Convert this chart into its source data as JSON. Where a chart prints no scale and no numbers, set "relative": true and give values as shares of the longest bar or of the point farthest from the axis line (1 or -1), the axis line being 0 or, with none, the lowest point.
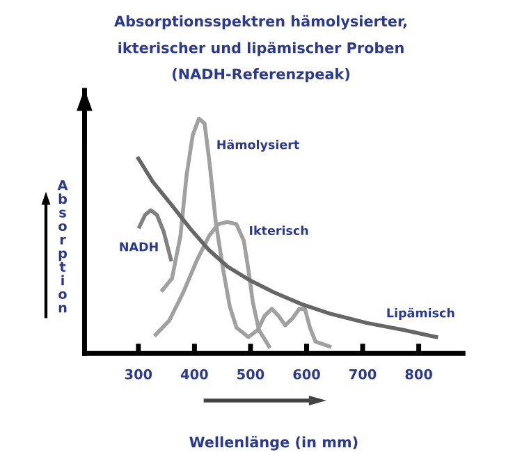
{
  "chart_data": {
    "type": "line",
    "title": "Absorptionsspektren hämolysierter,\nikterischer und lipämischer Proben\n(NADH-Referenzpeak)",
    "xlabel": "Wellenlänge (in mm)",
    "ylabel": "Absorption",
    "relative": true,
    "xlim": [
      204,
      879
    ],
    "xticks": [
      300,
      400,
      500,
      600,
      700,
      800
    ],
    "grid": false,
    "legend": false,
    "marker": "none",
    "line_style": "solid",
    "series": [
      {
        "name": "NADH",
        "color": "#808080",
        "x": [
          302,
          312,
          322,
          333,
          345,
          358
        ],
        "values": [
          0.54,
          0.59,
          0.61,
          0.59,
          0.52,
          0.4
        ]
      },
      {
        "name": "Hämolysiert",
        "color": "#a0a0a0",
        "x": [
          343,
          360,
          375,
          386,
          397,
          408,
          418,
          427,
          438,
          451,
          463,
          475,
          496,
          513,
          525,
          538,
          550,
          562,
          575,
          587,
          597,
          606,
          616,
          641
        ],
        "values": [
          0.27,
          0.32,
          0.5,
          0.76,
          0.93,
          1.0,
          0.98,
          0.81,
          0.56,
          0.36,
          0.2,
          0.11,
          0.07,
          0.1,
          0.16,
          0.19,
          0.16,
          0.12,
          0.15,
          0.19,
          0.19,
          0.11,
          0.05,
          0.03
        ]
      },
      {
        "name": "Ikterisch",
        "color": "#a0a0a0",
        "x": [
          331,
          355,
          380,
          405,
          426,
          442,
          459,
          475,
          488,
          496,
          504,
          515,
          533
        ],
        "values": [
          0.08,
          0.14,
          0.26,
          0.4,
          0.5,
          0.55,
          0.56,
          0.55,
          0.48,
          0.36,
          0.22,
          0.1,
          0.03
        ]
      },
      {
        "name": "Lipämisch",
        "color": "#666666",
        "x": [
          300,
          326,
          360,
          393,
          426,
          459,
          500,
          542,
          591,
          641,
          707,
          773,
          831
        ],
        "values": [
          0.83,
          0.73,
          0.63,
          0.53,
          0.44,
          0.37,
          0.31,
          0.26,
          0.21,
          0.17,
          0.13,
          0.1,
          0.07
        ]
      }
    ]
  }
}
